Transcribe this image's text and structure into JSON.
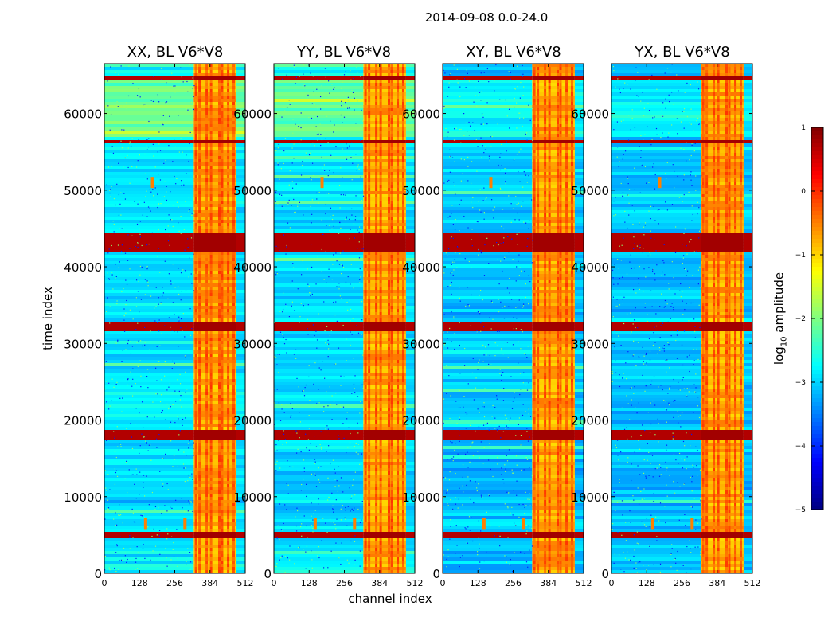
{
  "figure_title": "2014-09-08 0.0-24.0",
  "colorbar": {
    "label_prefix": "log",
    "label_sub": "10",
    "label_suffix": " amplitude",
    "ticks": [
      1,
      0,
      -1,
      -2,
      -3,
      -4,
      -5
    ],
    "tick_labels": [
      "1",
      "0",
      "−1",
      "−2",
      "−3",
      "−4",
      "−5"
    ],
    "range": [
      -5,
      1
    ],
    "colormap": "jet"
  },
  "chart_data": {
    "type": "heatmap",
    "title": "2014-09-08 0.0-24.0",
    "xlabel": "channel index",
    "ylabel": "time index",
    "xlim": [
      0,
      512
    ],
    "ylim": [
      0,
      66500
    ],
    "xticks": [
      0,
      128,
      256,
      384,
      512
    ],
    "yticks": [
      0,
      10000,
      20000,
      30000,
      40000,
      50000,
      60000
    ],
    "value_range": [
      -5,
      1
    ],
    "value_label": "log10 amplitude",
    "panels": [
      {
        "title": "XX, BL V6*V8",
        "polarization": "XX",
        "baseline": "V6*V8"
      },
      {
        "title": "YY, BL V6*V8",
        "polarization": "YY",
        "baseline": "V6*V8"
      },
      {
        "title": "XY, BL V6*V8",
        "polarization": "XY",
        "baseline": "V6*V8"
      },
      {
        "title": "YX, BL V6*V8",
        "polarization": "YX",
        "baseline": "V6*V8"
      }
    ],
    "rfi_channel_band": [
      325,
      480
    ],
    "strong_time_bands": [
      [
        4500,
        5200
      ],
      [
        17500,
        18500
      ],
      [
        26000,
        26300
      ],
      [
        31500,
        32800
      ],
      [
        41800,
        44500
      ],
      [
        56000,
        56500
      ],
      [
        64500,
        65000
      ]
    ],
    "channel_hot_columns": [
      333,
      346,
      372,
      388,
      418,
      428,
      450,
      470
    ],
    "point_sources": [
      [
        150,
        6500
      ],
      [
        175,
        51000
      ],
      [
        293,
        6500
      ]
    ]
  }
}
